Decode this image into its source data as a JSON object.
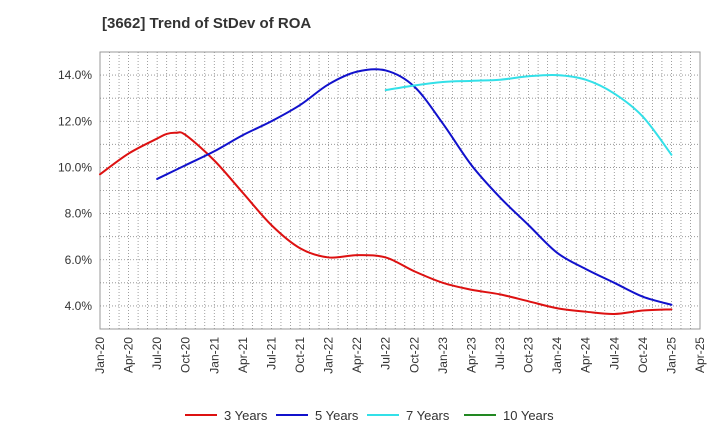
{
  "chart_data": {
    "type": "line",
    "title": "[3662]  Trend of StDev of ROA",
    "xlabel": "",
    "ylabel": "",
    "x_ticks": [
      "Jan-20",
      "Apr-20",
      "Jul-20",
      "Oct-20",
      "Jan-21",
      "Apr-21",
      "Jul-21",
      "Oct-21",
      "Jan-22",
      "Apr-22",
      "Jul-22",
      "Oct-22",
      "Jan-23",
      "Apr-23",
      "Jul-23",
      "Oct-23",
      "Jan-24",
      "Apr-24",
      "Jul-24",
      "Oct-24",
      "Jan-25",
      "Apr-25"
    ],
    "y_ticks": [
      4.0,
      6.0,
      8.0,
      10.0,
      12.0,
      14.0
    ],
    "y_tick_labels": [
      "4.0%",
      "6.0%",
      "8.0%",
      "10.0%",
      "12.0%",
      "14.0%"
    ],
    "ylim": [
      3.0,
      15.0
    ],
    "grid": true,
    "legend_position": "bottom",
    "series": [
      {
        "name": "3 Years",
        "color": "#dd1111",
        "points": [
          [
            "Jan-20",
            9.7
          ],
          [
            "Apr-20",
            10.6
          ],
          [
            "Jul-20",
            11.25
          ],
          [
            "Aug-20",
            11.45
          ],
          [
            "Sep-20",
            11.5
          ],
          [
            "Oct-20",
            11.4
          ],
          [
            "Jan-21",
            10.3
          ],
          [
            "Apr-21",
            8.9
          ],
          [
            "Jul-21",
            7.5
          ],
          [
            "Oct-21",
            6.5
          ],
          [
            "Jan-22",
            6.1
          ],
          [
            "Apr-22",
            6.2
          ],
          [
            "Jul-22",
            6.1
          ],
          [
            "Oct-22",
            5.5
          ],
          [
            "Jan-23",
            5.0
          ],
          [
            "Apr-23",
            4.7
          ],
          [
            "Jul-23",
            4.5
          ],
          [
            "Oct-23",
            4.2
          ],
          [
            "Jan-24",
            3.9
          ],
          [
            "Apr-24",
            3.75
          ],
          [
            "Jul-24",
            3.65
          ],
          [
            "Oct-24",
            3.8
          ],
          [
            "Jan-25",
            3.85
          ]
        ]
      },
      {
        "name": "5 Years",
        "color": "#1111cc",
        "points": [
          [
            "Jul-20",
            9.5
          ],
          [
            "Oct-20",
            10.1
          ],
          [
            "Jan-21",
            10.7
          ],
          [
            "Apr-21",
            11.4
          ],
          [
            "Jul-21",
            12.0
          ],
          [
            "Oct-21",
            12.7
          ],
          [
            "Jan-22",
            13.6
          ],
          [
            "Apr-22",
            14.15
          ],
          [
            "Jul-22",
            14.2
          ],
          [
            "Oct-22",
            13.5
          ],
          [
            "Jan-23",
            11.9
          ],
          [
            "Apr-23",
            10.1
          ],
          [
            "Jul-23",
            8.7
          ],
          [
            "Oct-23",
            7.5
          ],
          [
            "Jan-24",
            6.3
          ],
          [
            "Apr-24",
            5.6
          ],
          [
            "Jul-24",
            5.0
          ],
          [
            "Oct-24",
            4.4
          ],
          [
            "Jan-25",
            4.05
          ]
        ]
      },
      {
        "name": "7 Years",
        "color": "#33e0e8",
        "points": [
          [
            "Jul-22",
            13.35
          ],
          [
            "Oct-22",
            13.55
          ],
          [
            "Jan-23",
            13.7
          ],
          [
            "Apr-23",
            13.75
          ],
          [
            "Jul-23",
            13.8
          ],
          [
            "Oct-23",
            13.95
          ],
          [
            "Jan-24",
            14.0
          ],
          [
            "Apr-24",
            13.8
          ],
          [
            "Jul-24",
            13.2
          ],
          [
            "Oct-24",
            12.2
          ],
          [
            "Jan-25",
            10.55
          ]
        ]
      },
      {
        "name": "10 Years",
        "color": "#228822",
        "points": []
      }
    ]
  }
}
